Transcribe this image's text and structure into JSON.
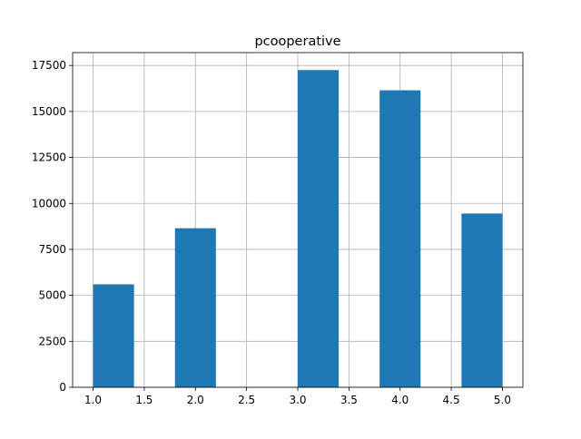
{
  "chart_data": {
    "type": "bar",
    "title": "pcooperative",
    "xlabel": "",
    "ylabel": "",
    "xlim": [
      0.8,
      5.2
    ],
    "ylim": [
      0,
      18200
    ],
    "grid": true,
    "bar_color": "#1f77b4",
    "grid_color": "#b0b0b0",
    "x_ticks": [
      1.0,
      1.5,
      2.0,
      2.5,
      3.0,
      3.5,
      4.0,
      4.5,
      5.0
    ],
    "x_tick_labels": [
      "1.0",
      "1.5",
      "2.0",
      "2.5",
      "3.0",
      "3.5",
      "4.0",
      "4.5",
      "5.0"
    ],
    "y_ticks": [
      0,
      2500,
      5000,
      7500,
      10000,
      12500,
      15000,
      17500
    ],
    "y_tick_labels": [
      "0",
      "2500",
      "5000",
      "7500",
      "10000",
      "12500",
      "15000",
      "17500"
    ],
    "bins": [
      {
        "start": 1.0,
        "end": 1.4,
        "value": 5600
      },
      {
        "start": 1.4,
        "end": 1.8,
        "value": 0
      },
      {
        "start": 1.8,
        "end": 2.2,
        "value": 8650
      },
      {
        "start": 2.2,
        "end": 2.6,
        "value": 0
      },
      {
        "start": 2.6,
        "end": 3.0,
        "value": 0
      },
      {
        "start": 3.0,
        "end": 3.4,
        "value": 17250
      },
      {
        "start": 3.4,
        "end": 3.8,
        "value": 0
      },
      {
        "start": 3.8,
        "end": 4.2,
        "value": 16150
      },
      {
        "start": 4.2,
        "end": 4.6,
        "value": 0
      },
      {
        "start": 4.6,
        "end": 5.0,
        "value": 9450
      }
    ]
  }
}
